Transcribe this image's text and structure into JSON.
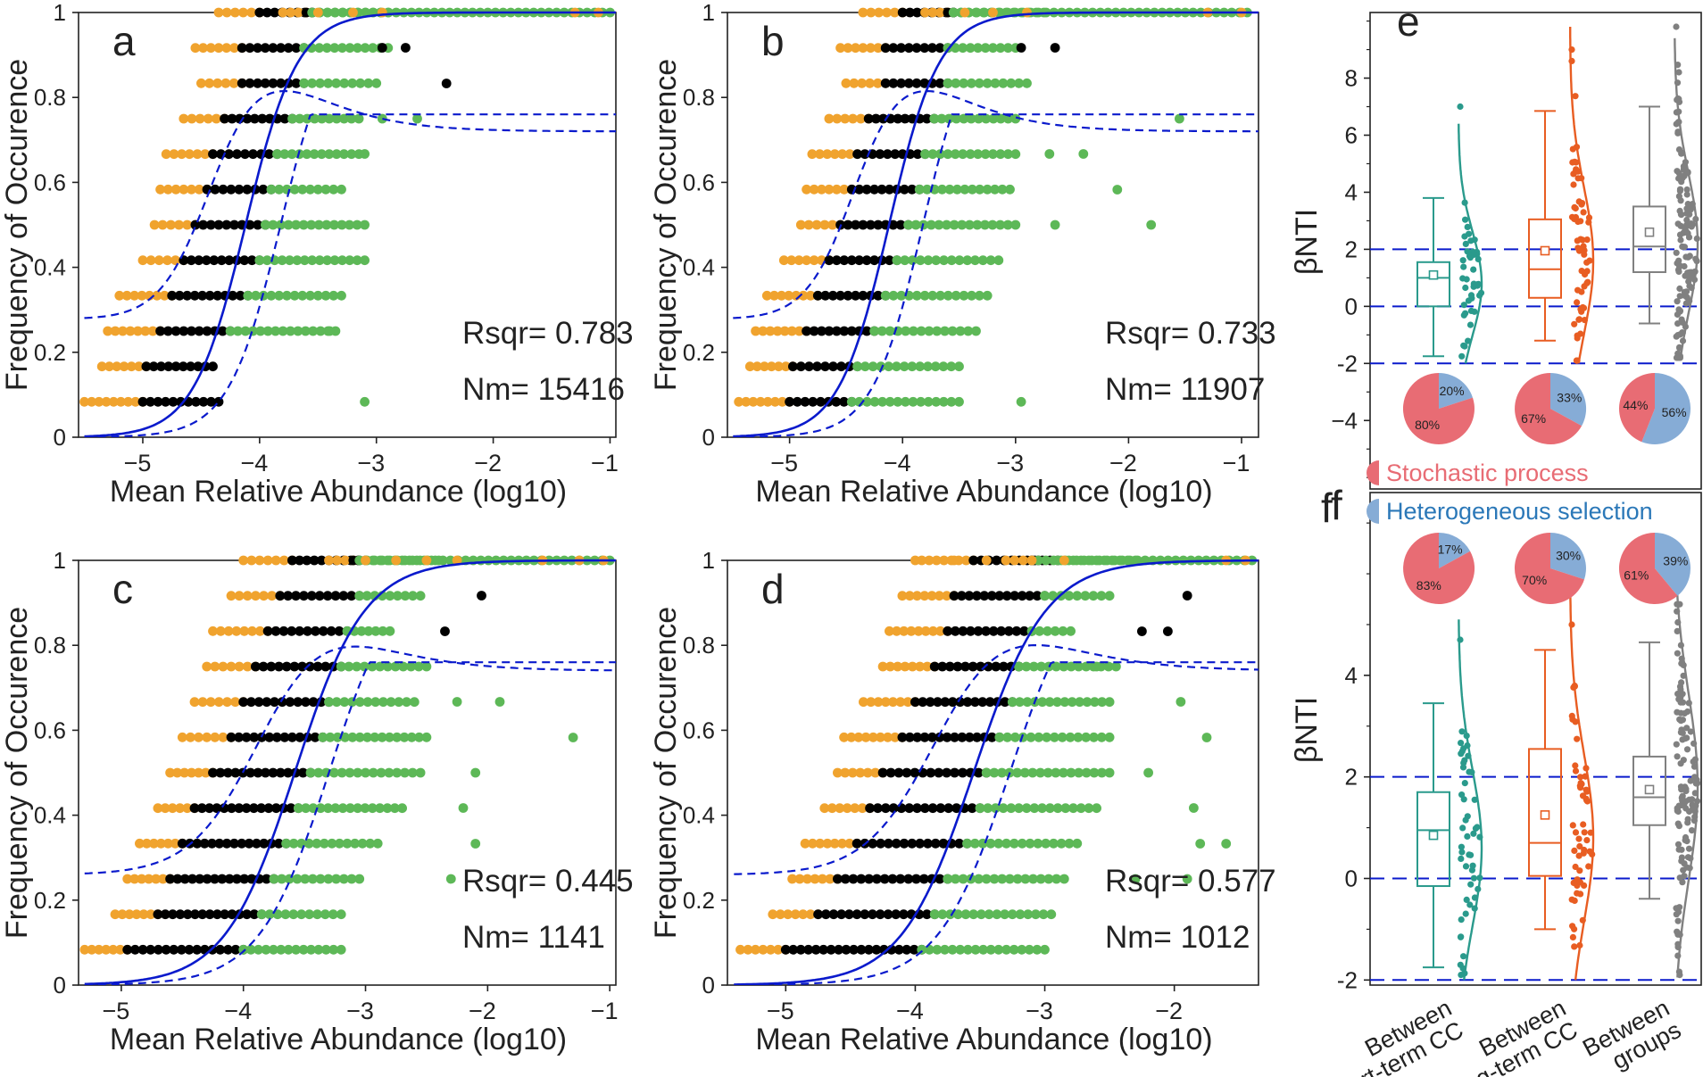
{
  "colors": {
    "above": "#F0A32E",
    "within": "#000000",
    "below": "#5DB857",
    "fit": "#0A1ACC",
    "short_term": "#2A9A8C",
    "long_term": "#E85D22",
    "between": "#808080",
    "stochastic": "#E86C74",
    "heterogeneous": "#86ACD6"
  },
  "chart_data": [
    {
      "id": "a",
      "type": "scatter",
      "panel_label": "a",
      "xlabel": "Mean Relative Abundance (log10)",
      "ylabel": "Frequency of Occurence",
      "xlim": [
        -5.55,
        -0.95
      ],
      "ylim": [
        0,
        1
      ],
      "xticks": [
        -5,
        -4,
        -3,
        -2,
        -1
      ],
      "xtick_labels": [
        "−5",
        "−4",
        "−3",
        "−2",
        "−1"
      ],
      "yticks": [
        0,
        0.2,
        0.4,
        0.6,
        0.8,
        1
      ],
      "ytick_labels": [
        "0",
        "0.2",
        "0.4",
        "0.6",
        "0.8",
        "1"
      ],
      "rsqr_text": "Rsqr= 0.783",
      "nm_text": "Nm= 15416",
      "center": -4.12,
      "steepness": 4.5,
      "ci_offset": 0.3,
      "plateau": 0.76,
      "ci_lower_start": 0.28,
      "levels": 12,
      "rows": [
        [
          -5.5,
          -5.0,
          -4.35
        ],
        [
          -5.35,
          -4.97,
          -4.4
        ],
        [
          -5.3,
          -4.85,
          -4.25,
          -3.35
        ],
        [
          -5.2,
          -4.75,
          -4.1,
          -3.3
        ],
        [
          -5.0,
          -4.65,
          -4.0,
          -3.1
        ],
        [
          -4.9,
          -4.55,
          -3.95,
          -3.1
        ],
        [
          -4.85,
          -4.45,
          -3.9,
          -3.3
        ],
        [
          -4.8,
          -4.4,
          -3.85,
          -3.15
        ],
        [
          -4.65,
          -4.3,
          -3.72,
          -3.15
        ],
        [
          -4.5,
          -4.15,
          -3.62,
          -3.0
        ],
        [
          -4.55,
          -4.15,
          -3.62,
          -2.9,
          -2.6
        ],
        [
          -4.35,
          -4.0,
          -3.55,
          -2.9
        ],
        [
          -3.8,
          -3.6,
          -3.55,
          -1.0
        ]
      ],
      "extras_above": [
        [
          -3.5,
          1.0
        ],
        [
          -3.2,
          1.0
        ],
        [
          -2.95,
          1.0
        ],
        [
          -1.3,
          1.0
        ],
        [
          -1.1,
          1.0
        ]
      ],
      "extras_within": [
        [
          -2.95,
          0.917
        ],
        [
          -2.75,
          0.917
        ],
        [
          -2.4,
          0.833
        ]
      ],
      "extras_below": [
        [
          -2.95,
          0.75
        ],
        [
          -2.65,
          0.75
        ],
        [
          -3.1,
          0.667
        ],
        [
          -3.4,
          0.25
        ],
        [
          -3.1,
          0.0833
        ]
      ]
    },
    {
      "id": "b",
      "type": "scatter",
      "panel_label": "b",
      "xlabel": "Mean Relative Abundance (log10)",
      "ylabel": "Frequency of Occurence",
      "xlim": [
        -5.55,
        -0.85
      ],
      "ylim": [
        0,
        1
      ],
      "xticks": [
        -5,
        -4,
        -3,
        -2,
        -1
      ],
      "xtick_labels": [
        "−5",
        "−4",
        "−3",
        "−2",
        "−1"
      ],
      "yticks": [
        0,
        0.2,
        0.4,
        0.6,
        0.8,
        1
      ],
      "ytick_labels": [
        "0",
        "0.2",
        "0.4",
        "0.6",
        "0.8",
        "1"
      ],
      "rsqr_text": "Rsqr= 0.733",
      "nm_text": "Nm= 11907",
      "center": -4.12,
      "steepness": 4.5,
      "ci_offset": 0.3,
      "plateau": 0.76,
      "ci_lower_start": 0.28,
      "levels": 12,
      "rows": [
        [
          -5.45,
          -5.0,
          -4.45,
          -3.5
        ],
        [
          -5.35,
          -4.97,
          -4.4,
          -3.5
        ],
        [
          -5.3,
          -4.85,
          -4.25,
          -3.35
        ],
        [
          -5.2,
          -4.75,
          -4.15,
          -3.25
        ],
        [
          -5.05,
          -4.65,
          -4.05,
          -3.15
        ],
        [
          -4.9,
          -4.55,
          -3.95,
          -3.0
        ],
        [
          -4.85,
          -4.45,
          -3.85,
          -3.05
        ],
        [
          -4.8,
          -4.4,
          -3.8,
          -3.0
        ],
        [
          -4.65,
          -4.3,
          -3.72,
          -3.0
        ],
        [
          -4.5,
          -4.15,
          -3.6,
          -2.9
        ],
        [
          -4.55,
          -4.15,
          -3.6,
          -3.0
        ],
        [
          -4.35,
          -4.0,
          -3.55,
          -2.75
        ],
        [
          -3.8,
          -3.6,
          -3.55,
          -0.95
        ]
      ],
      "extras_above": [
        [
          -3.45,
          1.0
        ],
        [
          -3.2,
          1.0
        ],
        [
          -2.9,
          1.0
        ],
        [
          -1.3,
          1.0
        ],
        [
          -1.0,
          1.0
        ]
      ],
      "extras_within": [
        [
          -2.95,
          0.917
        ],
        [
          -2.65,
          0.917
        ]
      ],
      "extras_below": [
        [
          -2.7,
          0.667
        ],
        [
          -2.4,
          0.667
        ],
        [
          -2.1,
          0.583
        ],
        [
          -1.8,
          0.5
        ],
        [
          -2.65,
          0.5
        ],
        [
          -1.55,
          0.75
        ],
        [
          -2.95,
          0.0833
        ]
      ]
    },
    {
      "id": "c",
      "type": "scatter",
      "panel_label": "c",
      "xlabel": "Mean Relative Abundance (log10)",
      "ylabel": "Frequency of Occurence",
      "xlim": [
        -5.35,
        -0.95
      ],
      "ylim": [
        0,
        1
      ],
      "xticks": [
        -5,
        -4,
        -3,
        -2,
        -1
      ],
      "xtick_labels": [
        "−5",
        "−4",
        "−3",
        "−2",
        "−1"
      ],
      "yticks": [
        0,
        0.2,
        0.4,
        0.6,
        0.8,
        1
      ],
      "ytick_labels": [
        "0",
        "0.2",
        "0.4",
        "0.6",
        "0.8",
        "1"
      ],
      "rsqr_text": "Rsqr= 0.445",
      "nm_text": "Nm= 1141",
      "center": -3.58,
      "steepness": 3.5,
      "ci_offset": 0.28,
      "plateau": 0.76,
      "ci_lower_start": 0.26,
      "levels": 12,
      "rows": [
        [
          -5.3,
          -4.95,
          -4.0,
          -3.2
        ],
        [
          -5.05,
          -4.7,
          -3.85,
          -3.2
        ],
        [
          -4.95,
          -4.6,
          -3.75,
          -3.05
        ],
        [
          -4.85,
          -4.5,
          -3.65,
          -2.9
        ],
        [
          -4.7,
          -4.4,
          -3.55,
          -2.7
        ],
        [
          -4.6,
          -4.25,
          -3.45,
          -2.55
        ],
        [
          -4.5,
          -4.1,
          -3.35,
          -2.5
        ],
        [
          -4.4,
          -4.0,
          -3.3,
          -2.6
        ],
        [
          -4.3,
          -3.9,
          -3.2,
          -2.5
        ],
        [
          -4.25,
          -3.8,
          -3.15,
          -2.8
        ],
        [
          -4.1,
          -3.7,
          -3.05,
          -2.55
        ],
        [
          -4.0,
          -3.6,
          -3.0,
          -2.4
        ],
        [
          -3.3,
          -3.1,
          -3.05,
          -1.0
        ]
      ],
      "extras_above": [
        [
          -3.0,
          1.0
        ],
        [
          -2.75,
          1.0
        ],
        [
          -2.5,
          1.0
        ],
        [
          -2.25,
          1.0
        ],
        [
          -1.55,
          1.0
        ],
        [
          -1.25,
          1.0
        ],
        [
          -1.05,
          1.0
        ]
      ],
      "extras_within": [
        [
          -2.05,
          0.917
        ],
        [
          -2.35,
          0.833
        ]
      ],
      "extras_below": [
        [
          -2.25,
          0.667
        ],
        [
          -1.9,
          0.667
        ],
        [
          -1.3,
          0.583
        ],
        [
          -2.1,
          0.5
        ],
        [
          -2.2,
          0.417
        ],
        [
          -2.3,
          0.25
        ],
        [
          -2.1,
          0.333
        ]
      ]
    },
    {
      "id": "d",
      "type": "scatter",
      "panel_label": "d",
      "xlabel": "Mean Relative Abundance (log10)",
      "ylabel": "Frequency of Occurence",
      "xlim": [
        -5.45,
        -1.35
      ],
      "ylim": [
        0,
        1
      ],
      "xticks": [
        -5,
        -4,
        -3,
        -2
      ],
      "xtick_labels": [
        "−5",
        "−4",
        "−3",
        "−2"
      ],
      "yticks": [
        0,
        0.2,
        0.4,
        0.6,
        0.8,
        1
      ],
      "ytick_labels": [
        "0",
        "0.2",
        "0.4",
        "0.6",
        "0.8",
        "1"
      ],
      "rsqr_text": "Rsqr= 0.577",
      "nm_text": "Nm= 1012",
      "center": -3.55,
      "steepness": 3.6,
      "ci_offset": 0.28,
      "plateau": 0.76,
      "ci_lower_start": 0.26,
      "levels": 12,
      "rows": [
        [
          -5.35,
          -5.0,
          -3.95,
          -3.0
        ],
        [
          -5.1,
          -4.75,
          -3.85,
          -2.95
        ],
        [
          -4.95,
          -4.6,
          -3.75,
          -2.85
        ],
        [
          -4.85,
          -4.45,
          -3.6,
          -2.75
        ],
        [
          -4.7,
          -4.35,
          -3.5,
          -2.6
        ],
        [
          -4.6,
          -4.25,
          -3.45,
          -2.5
        ],
        [
          -4.55,
          -4.1,
          -3.35,
          -2.5
        ],
        [
          -4.4,
          -4.0,
          -3.25,
          -2.5
        ],
        [
          -4.25,
          -3.85,
          -3.2,
          -2.45
        ],
        [
          -4.2,
          -3.75,
          -3.1,
          -2.8
        ],
        [
          -4.1,
          -3.7,
          -3.0,
          -2.5
        ],
        [
          -3.95,
          -3.55,
          -2.9,
          -2.3
        ],
        [
          -3.3,
          -3.1,
          -3.05,
          -1.4
        ]
      ],
      "extras_above": [
        [
          -4.0,
          1.0
        ],
        [
          -3.7,
          1.0
        ],
        [
          -3.45,
          1.0
        ],
        [
          -3.1,
          1.0
        ],
        [
          -2.85,
          1.0
        ],
        [
          -1.6,
          1.0
        ],
        [
          -1.45,
          1.0
        ]
      ],
      "extras_within": [
        [
          -1.9,
          0.917
        ],
        [
          -2.05,
          0.833
        ],
        [
          -2.25,
          0.833
        ]
      ],
      "extras_below": [
        [
          -2.6,
          0.75
        ],
        [
          -1.95,
          0.667
        ],
        [
          -1.75,
          0.583
        ],
        [
          -1.85,
          0.417
        ],
        [
          -1.6,
          0.333
        ],
        [
          -1.8,
          0.333
        ],
        [
          -1.9,
          0.25
        ],
        [
          -2.2,
          0.5
        ],
        [
          -2.3,
          0.25
        ]
      ]
    },
    {
      "id": "e",
      "type": "box",
      "panel_label": "e",
      "ylabel": "βNTI",
      "ylim": [
        -6.4,
        10.3
      ],
      "yticks": [
        -4,
        -2,
        0,
        2,
        4,
        6,
        8
      ],
      "ytick_labels": [
        "−4",
        "-2",
        "0",
        "2",
        "4",
        "6",
        "8"
      ],
      "ref_lines": [
        -2,
        0,
        2
      ],
      "legend_text": "Stochastic process",
      "legend_kind": "stochastic",
      "groups": [
        {
          "name": "short-term",
          "color_key": "short_term",
          "whisker_low": -1.75,
          "q1": 0.0,
          "median": 1.0,
          "q3": 1.55,
          "whisker_high": 3.8,
          "mean": 1.1,
          "outliers": [
            7.0
          ],
          "pts_min": -1.9,
          "pts_max": 4.3,
          "pts_center": 0.8,
          "curve_min": -2.0,
          "curve_max": 6.4,
          "n_pts": 42,
          "pie_heterogeneous": 20,
          "pie_stochastic": 80,
          "pie_het_label": "20%",
          "pie_sto_label": "80%"
        },
        {
          "name": "long-term",
          "color_key": "long_term",
          "whisker_low": -1.2,
          "q1": 0.3,
          "median": 1.3,
          "q3": 3.05,
          "whisker_high": 6.85,
          "mean": 1.95,
          "outliers": [
            9.0,
            8.6
          ],
          "pts_min": -1.9,
          "pts_max": 8.0,
          "pts_center": 1.6,
          "curve_min": -2.0,
          "curve_max": 9.8,
          "n_pts": 60,
          "pie_heterogeneous": 33,
          "pie_stochastic": 67,
          "pie_het_label": "33%",
          "pie_sto_label": "67%"
        },
        {
          "name": "between",
          "color_key": "between",
          "whisker_low": -0.6,
          "q1": 1.2,
          "median": 2.1,
          "q3": 3.5,
          "whisker_high": 7.0,
          "mean": 2.6,
          "outliers": [
            9.8
          ],
          "pts_min": -1.8,
          "pts_max": 8.8,
          "pts_center": 2.2,
          "curve_min": -1.9,
          "curve_max": 9.4,
          "n_pts": 130,
          "pie_heterogeneous": 56,
          "pie_stochastic": 44,
          "pie_het_label": "56%",
          "pie_sto_label": "44%"
        }
      ]
    },
    {
      "id": "f",
      "type": "box",
      "panel_label": "f",
      "ylabel": "βNTI",
      "ylim": [
        -2.1,
        7.6
      ],
      "yticks": [
        -2,
        0,
        2,
        4
      ],
      "ytick_labels": [
        "-2",
        "0",
        "2",
        "4"
      ],
      "ref_lines": [
        -2,
        0,
        2
      ],
      "legend_text": "Heterogeneous selection",
      "legend_kind": "heterogeneous",
      "categories": [
        "Between short-term CC",
        "Between long-term CC",
        "Between groups"
      ],
      "groups": [
        {
          "name": "short-term",
          "color_key": "short_term",
          "whisker_low": -1.75,
          "q1": -0.15,
          "median": 0.95,
          "q3": 1.7,
          "whisker_high": 3.45,
          "mean": 0.85,
          "outliers": [
            4.7
          ],
          "pts_min": -1.9,
          "pts_max": 3.6,
          "pts_center": 0.6,
          "curve_min": -2.0,
          "curve_max": 5.1,
          "n_pts": 50,
          "pie_heterogeneous": 17,
          "pie_stochastic": 83,
          "pie_het_label": "17%",
          "pie_sto_label": "83%"
        },
        {
          "name": "long-term",
          "color_key": "long_term",
          "whisker_low": -1.0,
          "q1": 0.05,
          "median": 0.7,
          "q3": 2.55,
          "whisker_high": 4.5,
          "mean": 1.25,
          "outliers": [
            5.0
          ],
          "pts_min": -1.9,
          "pts_max": 4.4,
          "pts_center": 0.8,
          "curve_min": -2.0,
          "curve_max": 5.6,
          "n_pts": 55,
          "pie_heterogeneous": 30,
          "pie_stochastic": 70,
          "pie_het_label": "30%",
          "pie_sto_label": "70%"
        },
        {
          "name": "between",
          "color_key": "between",
          "whisker_low": -0.4,
          "q1": 1.05,
          "median": 1.6,
          "q3": 2.4,
          "whisker_high": 4.65,
          "mean": 1.75,
          "outliers": [
            6.4
          ],
          "pts_min": -1.9,
          "pts_max": 5.4,
          "pts_center": 1.8,
          "curve_min": -1.95,
          "curve_max": 6.6,
          "n_pts": 120,
          "pie_heterogeneous": 39,
          "pie_stochastic": 61,
          "pie_het_label": "39%",
          "pie_sto_label": "61%"
        }
      ]
    }
  ],
  "x_category_labels": [
    {
      "line1": "Between",
      "line2": "short-term CC"
    },
    {
      "line1": "Between",
      "line2": "long-term CC"
    },
    {
      "line1": "Between",
      "line2": "groups"
    }
  ]
}
